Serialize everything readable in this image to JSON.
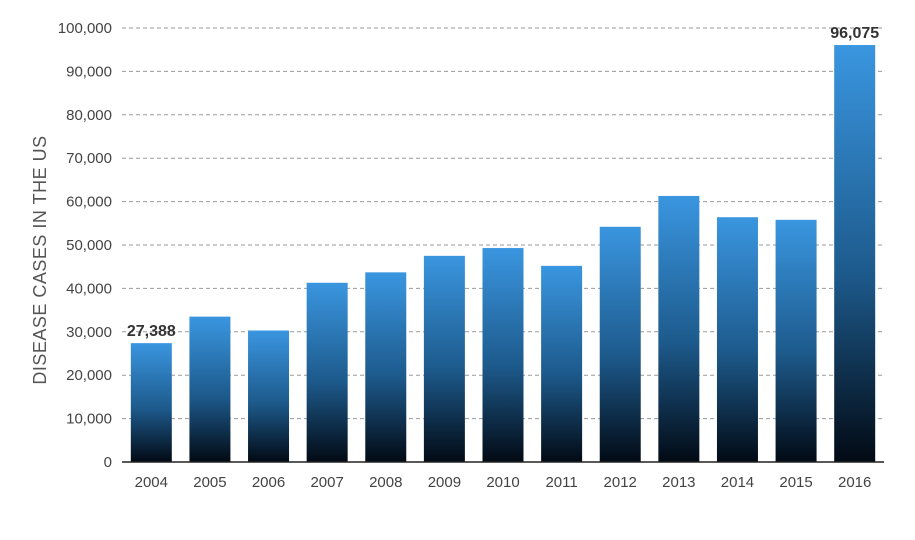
{
  "chart_data": {
    "type": "bar",
    "title": "",
    "xlabel": "",
    "ylabel": "DISEASE CASES IN THE US",
    "ylim": [
      0,
      100000
    ],
    "yticks": [
      0,
      10000,
      20000,
      30000,
      40000,
      50000,
      60000,
      70000,
      80000,
      90000,
      100000
    ],
    "ytick_labels": [
      "0",
      "10,000",
      "20,000",
      "30,000",
      "40,000",
      "50,000",
      "60,000",
      "70,000",
      "80,000",
      "90,000",
      "100,000"
    ],
    "categories": [
      "2004",
      "2005",
      "2006",
      "2007",
      "2008",
      "2009",
      "2010",
      "2011",
      "2012",
      "2013",
      "2014",
      "2015",
      "2016"
    ],
    "values": [
      27388,
      33500,
      30300,
      41300,
      43700,
      47500,
      49300,
      45200,
      54200,
      61300,
      56400,
      55800,
      96075
    ],
    "data_labels": [
      {
        "category": "2004",
        "text": "27,388"
      },
      {
        "category": "2016",
        "text": "96,075"
      }
    ],
    "grid": true,
    "grid_style": "dashed",
    "legend": "none",
    "colors": {
      "bar_top": "#3a96e0",
      "bar_bottom": "#020a14",
      "grid": "#9a9a9a",
      "text": "#444444"
    }
  }
}
